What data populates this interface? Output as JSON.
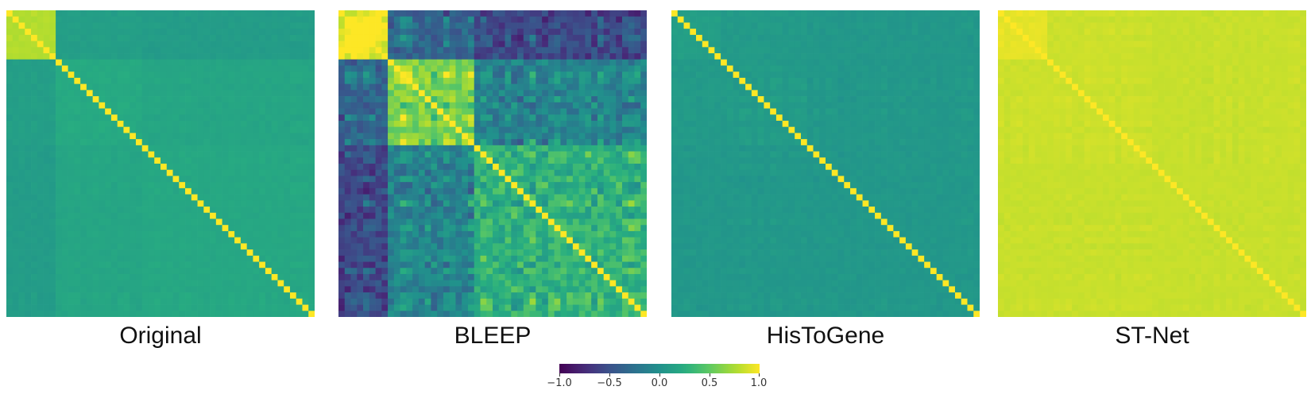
{
  "chart_data": {
    "type": "heatmap",
    "description_kind": "correlation matrices",
    "matrix_size": 50,
    "cluster_boundaries": [
      8,
      22
    ],
    "colormap": "viridis",
    "colorbar": {
      "vmin": -1.0,
      "vmax": 1.0,
      "ticks": [
        -1.0,
        -0.5,
        0.0,
        0.5,
        1.0
      ],
      "tick_labels": [
        "−1.0",
        "−0.5",
        "0.0",
        "0.5",
        "1.0"
      ]
    },
    "panels": [
      {
        "title": "Original",
        "diagonal": 1.0,
        "block_values": [
          [
            0.78,
            0.12,
            0.1
          ],
          [
            0.12,
            0.22,
            0.18
          ],
          [
            0.1,
            0.18,
            0.2
          ]
        ],
        "noise": 0.05
      },
      {
        "title": "BLEEP",
        "diagonal": 1.0,
        "block_values": [
          [
            1.0,
            -0.35,
            -0.55
          ],
          [
            -0.35,
            0.6,
            -0.1
          ],
          [
            -0.55,
            -0.1,
            0.3
          ]
        ],
        "noise": 0.45
      },
      {
        "title": "HisToGene",
        "diagonal": 1.0,
        "block_values": [
          [
            0.12,
            0.08,
            0.06
          ],
          [
            0.08,
            0.08,
            0.06
          ],
          [
            0.06,
            0.06,
            0.06
          ]
        ],
        "noise": 0.07
      },
      {
        "title": "ST-Net",
        "diagonal": 1.0,
        "block_values": [
          [
            0.93,
            0.85,
            0.84
          ],
          [
            0.85,
            0.85,
            0.84
          ],
          [
            0.84,
            0.84,
            0.84
          ]
        ],
        "noise": 0.04
      }
    ]
  }
}
